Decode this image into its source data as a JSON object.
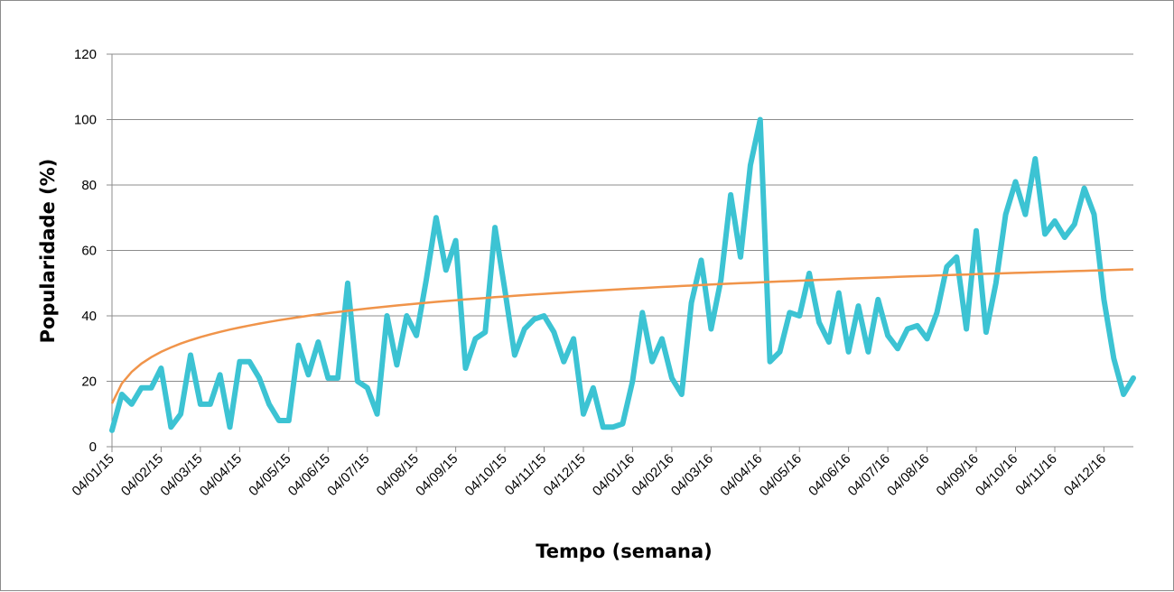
{
  "chart_data": {
    "type": "line",
    "xlabel": "Tempo (semana)",
    "ylabel": "Popularidade (%)",
    "ylim": [
      0,
      120
    ],
    "yticks": [
      0,
      20,
      40,
      60,
      80,
      100,
      120
    ],
    "grid": true,
    "legend": "none",
    "x_tick_labels": [
      "04/01/15",
      "04/02/15",
      "04/03/15",
      "04/04/15",
      "04/05/15",
      "04/06/15",
      "04/07/15",
      "04/08/15",
      "04/09/15",
      "04/10/15",
      "04/11/15",
      "04/12/15",
      "04/01/16",
      "04/02/16",
      "04/03/16",
      "04/04/16",
      "04/05/16",
      "04/06/16",
      "04/07/16",
      "04/08/16",
      "04/09/16",
      "04/10/16",
      "04/11/16",
      "04/12/16"
    ],
    "x_tick_week_index": [
      0,
      5,
      9,
      13,
      18,
      22,
      26,
      31,
      35,
      40,
      44,
      48,
      53,
      57,
      61,
      66,
      70,
      75,
      79,
      83,
      88,
      92,
      96,
      101
    ],
    "series": [
      {
        "color": "#3cc3d3",
        "values": [
          5,
          16,
          13,
          18,
          18,
          24,
          6,
          10,
          28,
          13,
          13,
          22,
          6,
          26,
          26,
          21,
          13,
          8,
          8,
          31,
          22,
          32,
          21,
          21,
          50,
          20,
          18,
          10,
          40,
          25,
          40,
          34,
          51,
          70,
          54,
          63,
          24,
          33,
          35,
          67,
          48,
          28,
          36,
          39,
          40,
          35,
          26,
          33,
          10,
          18,
          6,
          6,
          7,
          20,
          41,
          26,
          33,
          21,
          16,
          44,
          57,
          36,
          51,
          77,
          58,
          86,
          100,
          26,
          29,
          41,
          40,
          53,
          38,
          32,
          47,
          29,
          43,
          29,
          45,
          34,
          30,
          36,
          37,
          33,
          41,
          55,
          58,
          36,
          66,
          35,
          50,
          71,
          81,
          71,
          88,
          65,
          69,
          64,
          68,
          79,
          71,
          45,
          27,
          16,
          21
        ]
      },
      {
        "color": "#f0944a",
        "trendline": "logarithmic",
        "start": 13.2,
        "end": 54.2
      }
    ]
  }
}
